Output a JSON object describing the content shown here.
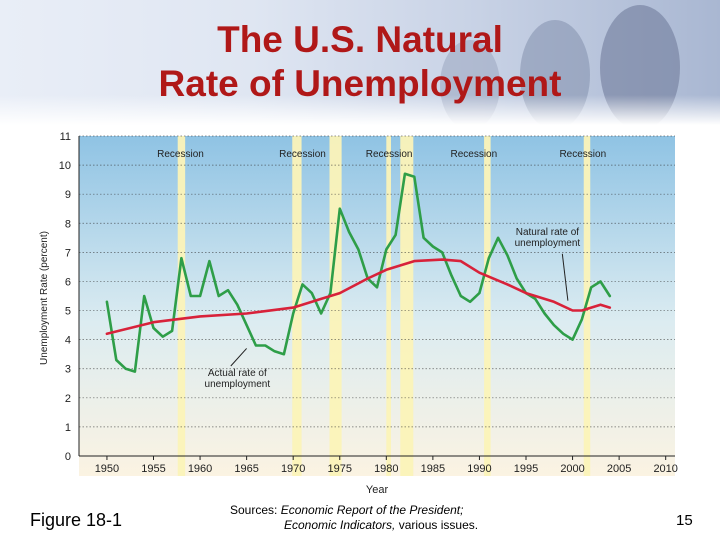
{
  "slide": {
    "title_line1": "The U.S. Natural",
    "title_line2": "Rate of Unemployment",
    "figure_label": "Figure 18-1",
    "sources_prefix": "Sources: ",
    "sources_title1": "Economic Report of the President;",
    "sources_title2": "Economic Indicators,",
    "sources_suffix": " various issues.",
    "page_number": "15"
  },
  "colors": {
    "title": "#b01818",
    "actual": "#2e9e48",
    "natural": "#d8223a",
    "recession_band": "#fbf3b8",
    "plot_top": "#8fc3e4",
    "plot_bottom": "#fbf3e2"
  },
  "chart_data": {
    "type": "line",
    "xlabel": "Year",
    "ylabel": "Unemployment Rate (percent)",
    "xlim": [
      1947,
      2011
    ],
    "ylim": [
      0,
      11
    ],
    "x_ticks": [
      1950,
      1955,
      1960,
      1965,
      1970,
      1975,
      1980,
      1985,
      1990,
      1995,
      2000,
      2005,
      2010
    ],
    "y_ticks": [
      0,
      1,
      2,
      3,
      4,
      5,
      6,
      7,
      8,
      9,
      10,
      11
    ],
    "grid": true,
    "recessions": [
      {
        "label": "Recession",
        "start": 1957.6,
        "end": 1958.4
      },
      {
        "label": "Recession",
        "start": 1969.9,
        "end": 1970.9
      },
      {
        "label": "Recession",
        "start": 1973.9,
        "end": 1975.2
      },
      {
        "label": "Recession",
        "start": 1980.0,
        "end": 1980.5
      },
      {
        "label": "Recession",
        "start": 1981.5,
        "end": 1982.9
      },
      {
        "label": "Recession",
        "start": 1990.5,
        "end": 1991.2
      },
      {
        "label": "Recession",
        "start": 2001.2,
        "end": 2001.9
      }
    ],
    "recession_labels": [
      {
        "text": "Recession",
        "x": 1957.9
      },
      {
        "text": "Recession",
        "x": 1971.0
      },
      {
        "text": "Recession",
        "x": 1980.3
      },
      {
        "text": "Recession",
        "x": 1989.4
      },
      {
        "text": "Recession",
        "x": 2001.1
      }
    ],
    "series": [
      {
        "name": "Actual rate of unemployment",
        "x": [
          1950,
          1951,
          1952,
          1953,
          1954,
          1955,
          1956,
          1957,
          1958,
          1959,
          1960,
          1961,
          1962,
          1963,
          1964,
          1965,
          1966,
          1967,
          1968,
          1969,
          1970,
          1971,
          1972,
          1973,
          1974,
          1975,
          1976,
          1977,
          1978,
          1979,
          1980,
          1981,
          1982,
          1983,
          1984,
          1985,
          1986,
          1987,
          1988,
          1989,
          1990,
          1991,
          1992,
          1993,
          1994,
          1995,
          1996,
          1997,
          1998,
          1999,
          2000,
          2001,
          2002,
          2003,
          2004
        ],
        "y": [
          5.3,
          3.3,
          3.0,
          2.9,
          5.5,
          4.4,
          4.1,
          4.3,
          6.8,
          5.5,
          5.5,
          6.7,
          5.5,
          5.7,
          5.2,
          4.5,
          3.8,
          3.8,
          3.6,
          3.5,
          4.9,
          5.9,
          5.6,
          4.9,
          5.6,
          8.5,
          7.7,
          7.1,
          6.1,
          5.8,
          7.1,
          7.6,
          9.7,
          9.6,
          7.5,
          7.2,
          7.0,
          6.2,
          5.5,
          5.3,
          5.6,
          6.8,
          7.5,
          6.9,
          6.1,
          5.6,
          5.4,
          4.9,
          4.5,
          4.2,
          4.0,
          4.7,
          5.8,
          6.0,
          5.5
        ]
      },
      {
        "name": "Natural rate of unemployment",
        "x": [
          1950,
          1955,
          1960,
          1965,
          1970,
          1973,
          1975,
          1978,
          1980,
          1983,
          1986,
          1988,
          1990,
          1993,
          1995,
          1998,
          2000,
          2001,
          2002,
          2003,
          2004
        ],
        "y": [
          4.2,
          4.6,
          4.8,
          4.9,
          5.1,
          5.4,
          5.6,
          6.1,
          6.4,
          6.7,
          6.75,
          6.7,
          6.3,
          5.9,
          5.6,
          5.3,
          5.0,
          5.0,
          5.1,
          5.2,
          5.1
        ]
      }
    ],
    "annotations": [
      {
        "text_line1": "Natural rate of",
        "text_line2": "unemployment",
        "points_to": [
          1999.5,
          5.2
        ]
      },
      {
        "text_line1": "Actual rate of",
        "text_line2": "unemployment",
        "points_to": [
          1965.0,
          3.8
        ]
      }
    ]
  }
}
